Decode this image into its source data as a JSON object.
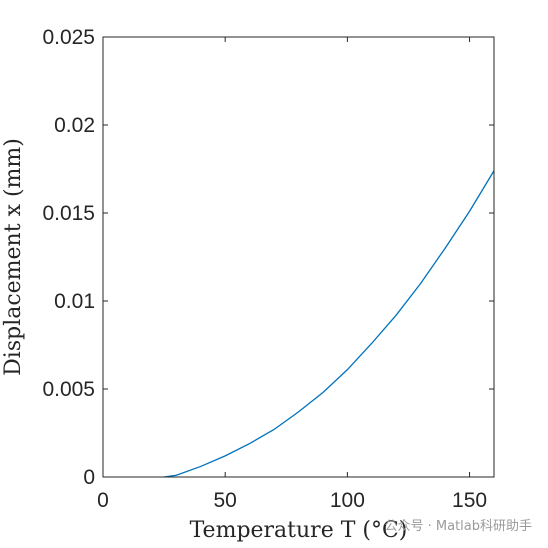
{
  "chart_data": {
    "type": "line",
    "title": "",
    "xlabel": "Temperature T (°C)",
    "ylabel": "Displacement x (mm)",
    "xlim": [
      0,
      160
    ],
    "ylim": [
      0,
      0.025
    ],
    "x_ticks": [
      0,
      50,
      100,
      150
    ],
    "y_ticks": [
      0,
      0.005,
      0.01,
      0.015,
      0.02,
      0.025
    ],
    "x_tick_labels": [
      "0",
      "50",
      "100",
      "150"
    ],
    "y_tick_labels": [
      "0",
      "0.005",
      "0.01",
      "0.015",
      "0.02",
      "0.025"
    ],
    "grid": false,
    "legend": "none",
    "series": [
      {
        "color": "#0072BD",
        "x": [
          25,
          30,
          40,
          50,
          60,
          70,
          80,
          90,
          100,
          110,
          120,
          130,
          140,
          150,
          160
        ],
        "y": [
          0,
          0.0001,
          0.0006,
          0.0012,
          0.0019,
          0.0027,
          0.0037,
          0.0048,
          0.0061,
          0.0076,
          0.0092,
          0.011,
          0.013,
          0.0151,
          0.0174
        ]
      }
    ]
  },
  "watermark": {
    "text": "公众号 · Matlab科研助手"
  }
}
